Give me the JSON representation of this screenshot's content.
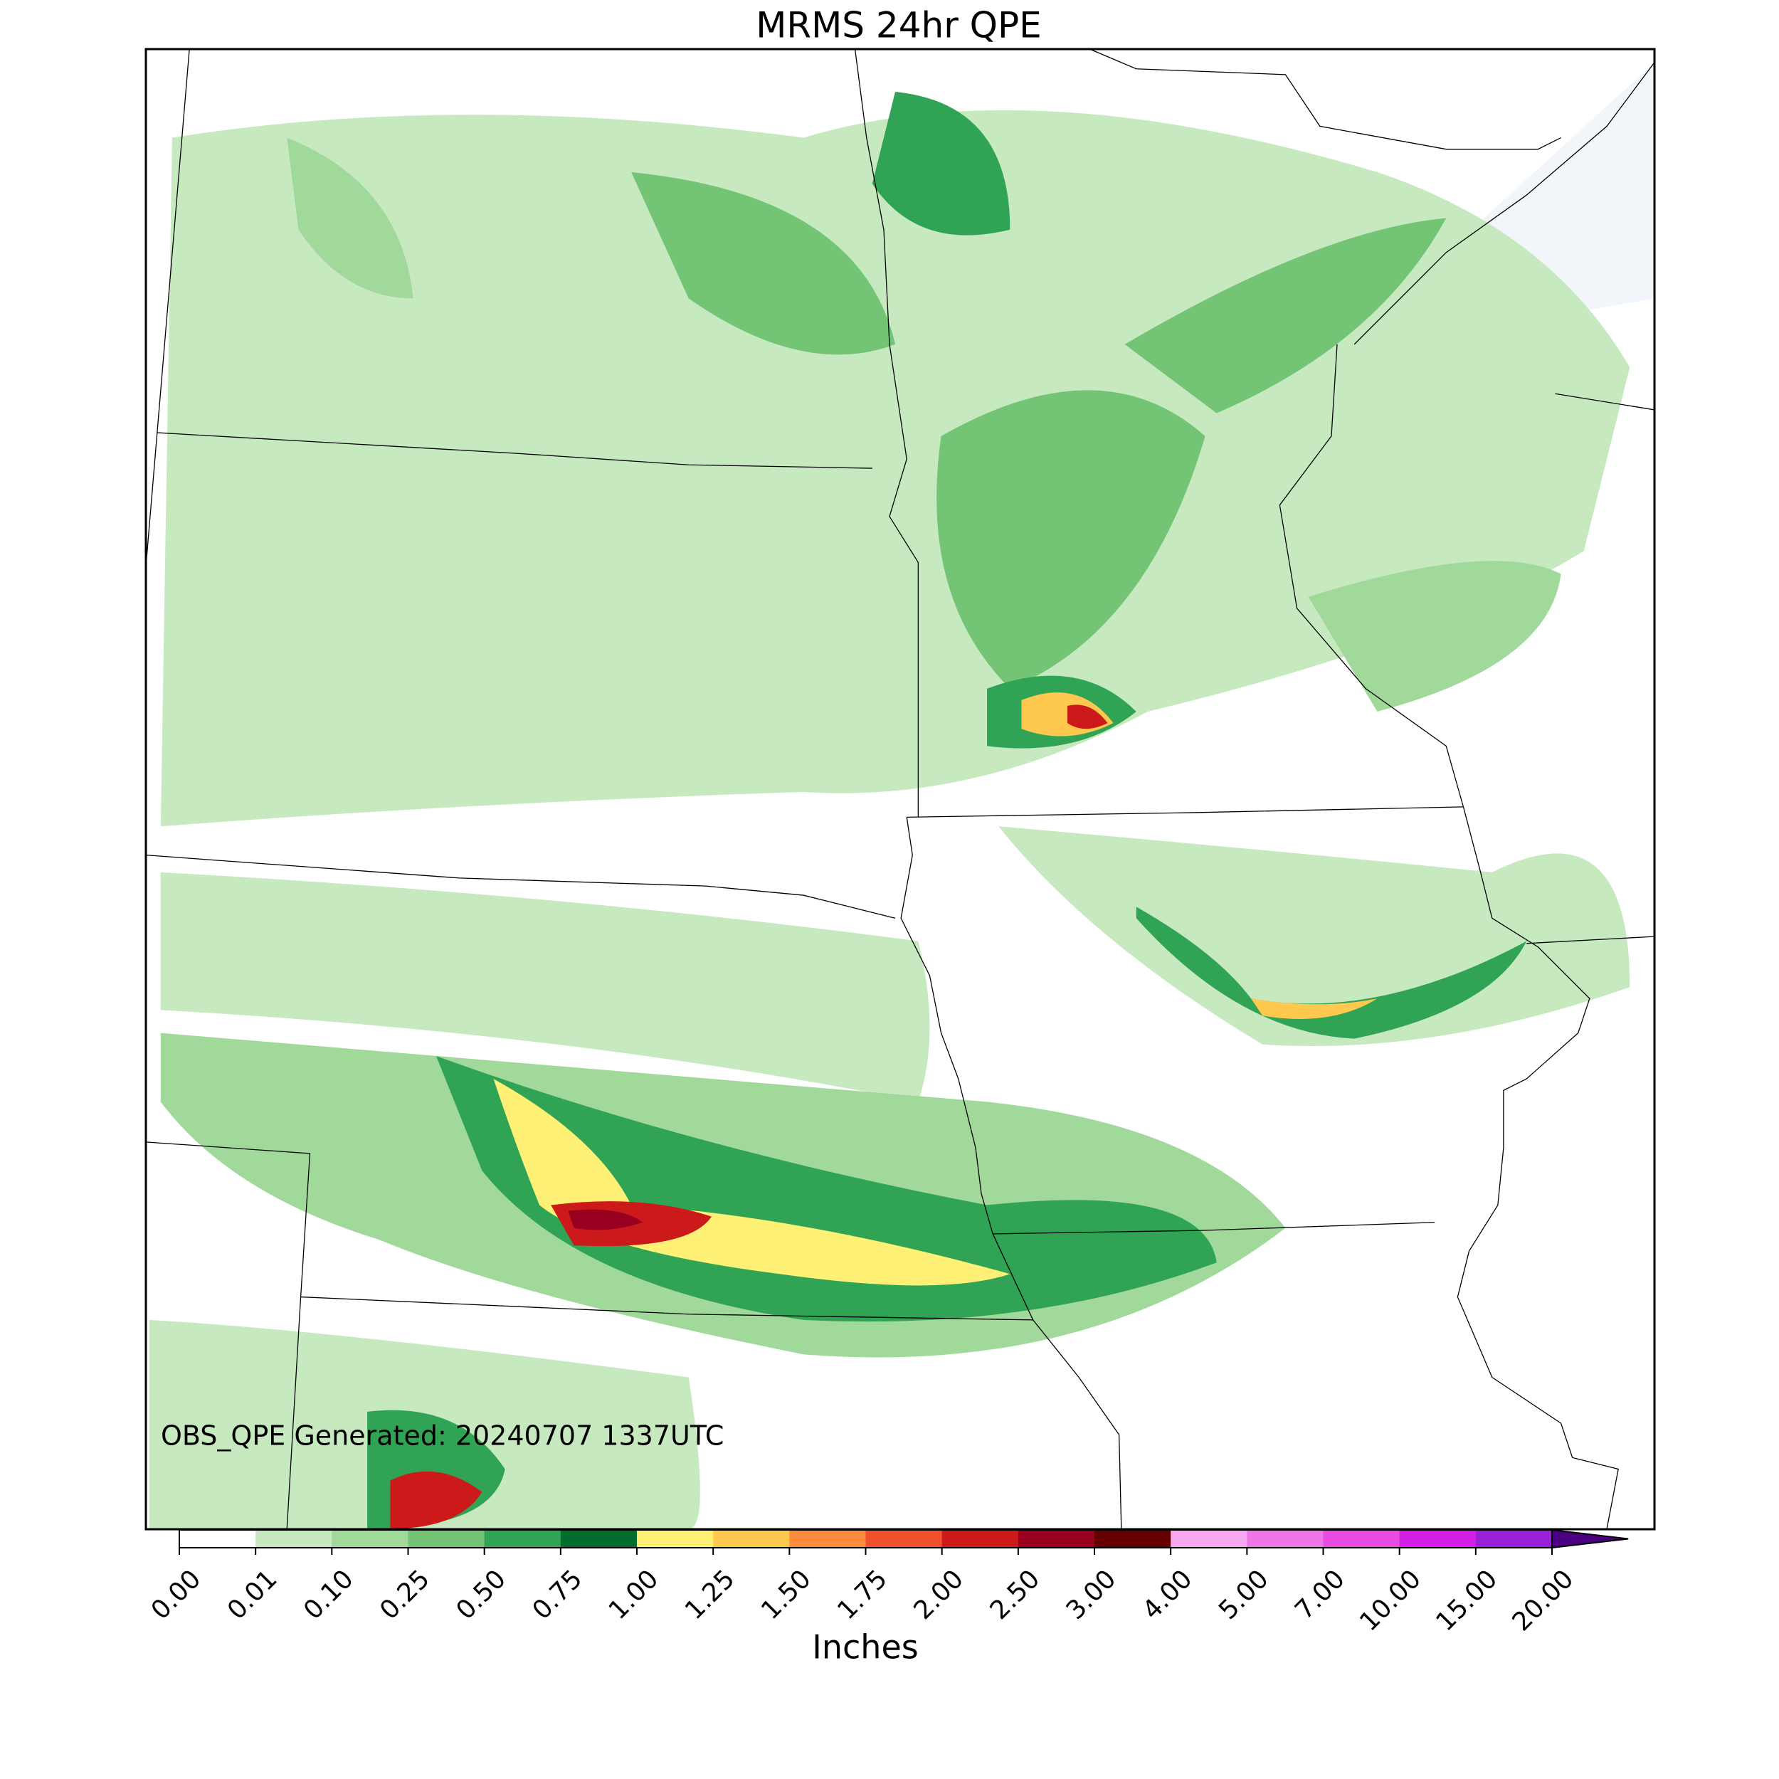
{
  "title": "MRMS 24hr QPE",
  "annotation": "OBS_QPE Generated: 20240707 1337UTC",
  "colorbar": {
    "label": "Inches",
    "ticks": [
      {
        "value": 0,
        "label": "0.00"
      },
      {
        "value": 0.01,
        "label": "0.01"
      },
      {
        "value": 0.1,
        "label": "0.10"
      },
      {
        "value": 0.25,
        "label": "0.25"
      },
      {
        "value": 0.5,
        "label": "0.50"
      },
      {
        "value": 0.75,
        "label": "0.75"
      },
      {
        "value": 1,
        "label": "1.00"
      },
      {
        "value": 1.25,
        "label": "1.25"
      },
      {
        "value": 1.5,
        "label": "1.50"
      },
      {
        "value": 1.75,
        "label": "1.75"
      },
      {
        "value": 2,
        "label": "2.00"
      },
      {
        "value": 2.5,
        "label": "2.50"
      },
      {
        "value": 3,
        "label": "3.00"
      },
      {
        "value": 4,
        "label": "4.00"
      },
      {
        "value": 5,
        "label": "5.00"
      },
      {
        "value": 7,
        "label": "7.00"
      },
      {
        "value": 10,
        "label": "10.00"
      },
      {
        "value": 15,
        "label": "15.00"
      },
      {
        "value": 20,
        "label": "20.00"
      }
    ],
    "colors": [
      "#ffffff",
      "#c7e9c0",
      "#a1d99b",
      "#74c476",
      "#31a354",
      "#006d2c",
      "#fff176",
      "#ffc84f",
      "#fd8d3c",
      "#f0502a",
      "#cc1a1a",
      "#99001f",
      "#660000",
      "#f7a8f0",
      "#f075e8",
      "#e84be0",
      "#d41ee6",
      "#9b1ed9"
    ],
    "over_color": "#4b0082"
  }
}
